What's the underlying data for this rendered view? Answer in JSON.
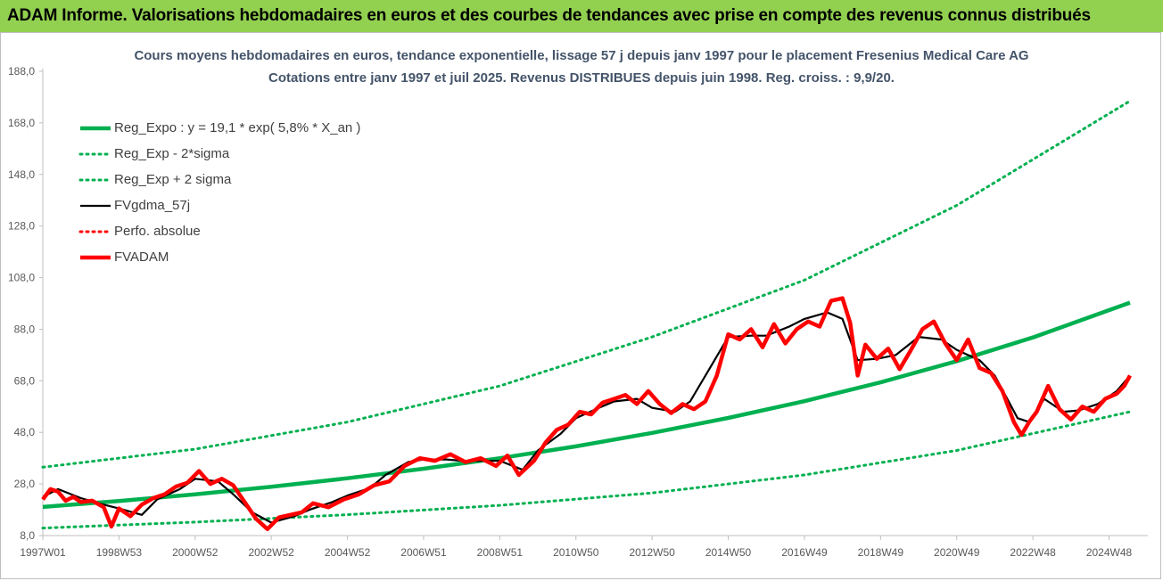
{
  "header": {
    "title": "ADAM Informe. Valorisations hebdomadaires en euros et des courbes de tendances avec prise en compte des revenus connus distribués",
    "background_color": "#92d050"
  },
  "chart_data": {
    "type": "line",
    "title": "Cours moyens hebdomadaires en euros, tendance exponentielle, lissage 57 j depuis janv 1997 pour le placement Fresenius Medical Care AG",
    "subtitle": "Cotations entre janv 1997 et juil 2025. Revenus DISTRIBUES depuis juin 1998. Reg. croiss. : 9,9/20.",
    "xlabel": "",
    "ylabel": "",
    "x_range": [
      1997.0,
      2025.55
    ],
    "ylim": [
      8,
      188
    ],
    "grid": false,
    "legend_position": "top-left",
    "y_ticks": [
      "8,0",
      "28,0",
      "48,0",
      "68,0",
      "88,0",
      "108,0",
      "128,0",
      "148,0",
      "168,0",
      "188,0"
    ],
    "x_ticks": [
      {
        "label": "1997W01",
        "x": 1997.0
      },
      {
        "label": "1998W53",
        "x": 1999.0
      },
      {
        "label": "2000W52",
        "x": 2001.0
      },
      {
        "label": "2002W52",
        "x": 2003.0
      },
      {
        "label": "2004W52",
        "x": 2005.0
      },
      {
        "label": "2006W51",
        "x": 2007.0
      },
      {
        "label": "2008W51",
        "x": 2009.0
      },
      {
        "label": "2010W50",
        "x": 2011.0
      },
      {
        "label": "2012W50",
        "x": 2013.0
      },
      {
        "label": "2014W50",
        "x": 2015.0
      },
      {
        "label": "2016W49",
        "x": 2017.0
      },
      {
        "label": "2018W49",
        "x": 2019.0
      },
      {
        "label": "2020W49",
        "x": 2021.0
      },
      {
        "label": "2022W48",
        "x": 2023.0
      },
      {
        "label": "2024W48",
        "x": 2025.0
      }
    ],
    "series": [
      {
        "name": "Reg_Expo : y = 19,1 * exp( 5,8% *  X_an )",
        "color": "#00b050",
        "style": "solid-thick",
        "x": [
          1997.0,
          1999.0,
          2001.0,
          2003.0,
          2005.0,
          2007.0,
          2009.0,
          2011.0,
          2013.0,
          2015.0,
          2017.0,
          2019.0,
          2021.0,
          2023.0,
          2025.55
        ],
        "values": [
          19.1,
          21.4,
          24.0,
          26.9,
          30.2,
          33.9,
          38.0,
          42.6,
          47.8,
          53.6,
          60.1,
          67.4,
          75.6,
          84.8,
          98.3
        ]
      },
      {
        "name": "Reg_Exp - 2*sigma",
        "color": "#00b050",
        "style": "dotted",
        "x": [
          1997.0,
          2001.0,
          2005.0,
          2009.0,
          2013.0,
          2017.0,
          2021.0,
          2025.55
        ],
        "values": [
          10.9,
          13.2,
          16.1,
          19.7,
          24.5,
          31.5,
          41.0,
          56.0
        ]
      },
      {
        "name": "Reg_Exp + 2 sigma",
        "color": "#00b050",
        "style": "dotted",
        "x": [
          1997.0,
          2001.0,
          2005.0,
          2009.0,
          2013.0,
          2017.0,
          2021.0,
          2025.55
        ],
        "values": [
          34.5,
          41.5,
          52.0,
          66.0,
          85.0,
          107.0,
          136.0,
          176.5
        ]
      },
      {
        "name": "FVgdma_57j",
        "color": "#000000",
        "style": "solid",
        "x": [
          1997.0,
          1997.4,
          1998.0,
          1998.6,
          1999.0,
          1999.6,
          2000.0,
          2000.6,
          2001.0,
          2001.6,
          2002.0,
          2002.5,
          2003.0,
          2003.6,
          2004.0,
          2004.6,
          2005.0,
          2005.6,
          2006.0,
          2006.6,
          2007.0,
          2007.6,
          2008.0,
          2008.6,
          2009.0,
          2009.6,
          2010.0,
          2010.6,
          2011.0,
          2011.6,
          2012.0,
          2012.6,
          2013.0,
          2013.6,
          2014.0,
          2014.6,
          2015.0,
          2015.6,
          2016.0,
          2016.6,
          2017.0,
          2017.6,
          2018.0,
          2018.4,
          2018.9,
          2019.4,
          2020.0,
          2020.6,
          2021.0,
          2021.6,
          2022.0,
          2022.6,
          2022.9,
          2023.3,
          2023.8,
          2024.2,
          2024.7,
          2025.2,
          2025.55
        ],
        "values": [
          23.0,
          26.0,
          22.5,
          20.0,
          18.5,
          16.0,
          22.0,
          26.0,
          30.0,
          29.0,
          24.0,
          17.0,
          13.0,
          15.5,
          18.0,
          21.0,
          23.5,
          26.5,
          31.5,
          36.5,
          37.5,
          37.5,
          37.0,
          37.0,
          37.0,
          33.5,
          41.0,
          47.5,
          53.5,
          57.5,
          60.0,
          61.0,
          57.5,
          56.0,
          60.0,
          75.0,
          85.0,
          85.5,
          85.5,
          89.0,
          92.0,
          94.5,
          92.0,
          76.0,
          76.5,
          78.0,
          85.0,
          84.0,
          80.0,
          76.0,
          70.0,
          53.5,
          52.0,
          61.0,
          56.0,
          56.5,
          59.0,
          64.0,
          70.0
        ]
      },
      {
        "name": "Perfo. absolue",
        "color": "#ff0000",
        "style": "dotted",
        "x": [],
        "values": []
      },
      {
        "name": "FVADAM",
        "color": "#ff0000",
        "style": "solid-thick",
        "x": [
          1997.0,
          1997.2,
          1997.4,
          1997.6,
          1997.8,
          1998.0,
          1998.3,
          1998.6,
          1998.8,
          1999.0,
          1999.3,
          1999.6,
          1999.9,
          2000.2,
          2000.5,
          2000.8,
          2001.1,
          2001.4,
          2001.7,
          2002.0,
          2002.3,
          2002.6,
          2002.9,
          2003.2,
          2003.5,
          2003.8,
          2004.1,
          2004.5,
          2004.9,
          2005.3,
          2005.7,
          2006.1,
          2006.5,
          2006.9,
          2007.3,
          2007.7,
          2008.1,
          2008.5,
          2008.9,
          2009.2,
          2009.5,
          2009.9,
          2010.2,
          2010.5,
          2010.8,
          2011.1,
          2011.4,
          2011.7,
          2012.0,
          2012.3,
          2012.6,
          2012.9,
          2013.2,
          2013.5,
          2013.8,
          2014.1,
          2014.4,
          2014.7,
          2015.0,
          2015.3,
          2015.6,
          2015.9,
          2016.2,
          2016.5,
          2016.8,
          2017.1,
          2017.4,
          2017.7,
          2018.0,
          2018.2,
          2018.4,
          2018.6,
          2018.9,
          2019.2,
          2019.5,
          2019.8,
          2020.1,
          2020.4,
          2020.7,
          2021.0,
          2021.3,
          2021.6,
          2021.9,
          2022.2,
          2022.5,
          2022.7,
          2022.9,
          2023.1,
          2023.4,
          2023.7,
          2024.0,
          2024.3,
          2024.6,
          2024.9,
          2025.2,
          2025.4,
          2025.55
        ],
        "values": [
          22.0,
          26.0,
          25.0,
          21.5,
          23.0,
          21.0,
          21.5,
          19.0,
          11.5,
          18.5,
          15.5,
          20.0,
          22.5,
          24.0,
          27.0,
          28.5,
          33.0,
          28.0,
          30.0,
          27.5,
          21.0,
          14.5,
          10.5,
          15.0,
          16.0,
          17.0,
          20.5,
          19.0,
          22.0,
          24.0,
          27.5,
          29.0,
          35.0,
          38.0,
          37.0,
          39.5,
          36.5,
          38.0,
          35.0,
          39.0,
          31.5,
          37.0,
          44.0,
          49.0,
          51.0,
          56.0,
          55.0,
          59.5,
          61.0,
          62.5,
          59.0,
          64.0,
          59.0,
          55.5,
          59.0,
          57.0,
          60.0,
          70.0,
          86.0,
          84.0,
          88.0,
          81.0,
          90.0,
          82.5,
          88.0,
          91.0,
          89.0,
          99.0,
          100.0,
          90.5,
          70.0,
          82.0,
          76.5,
          80.5,
          72.5,
          80.0,
          88.0,
          91.0,
          82.5,
          76.0,
          84.0,
          73.0,
          71.0,
          64.0,
          52.0,
          47.0,
          52.0,
          56.0,
          66.0,
          57.0,
          53.0,
          58.0,
          56.0,
          61.0,
          63.0,
          66.0,
          70.0
        ]
      }
    ]
  }
}
